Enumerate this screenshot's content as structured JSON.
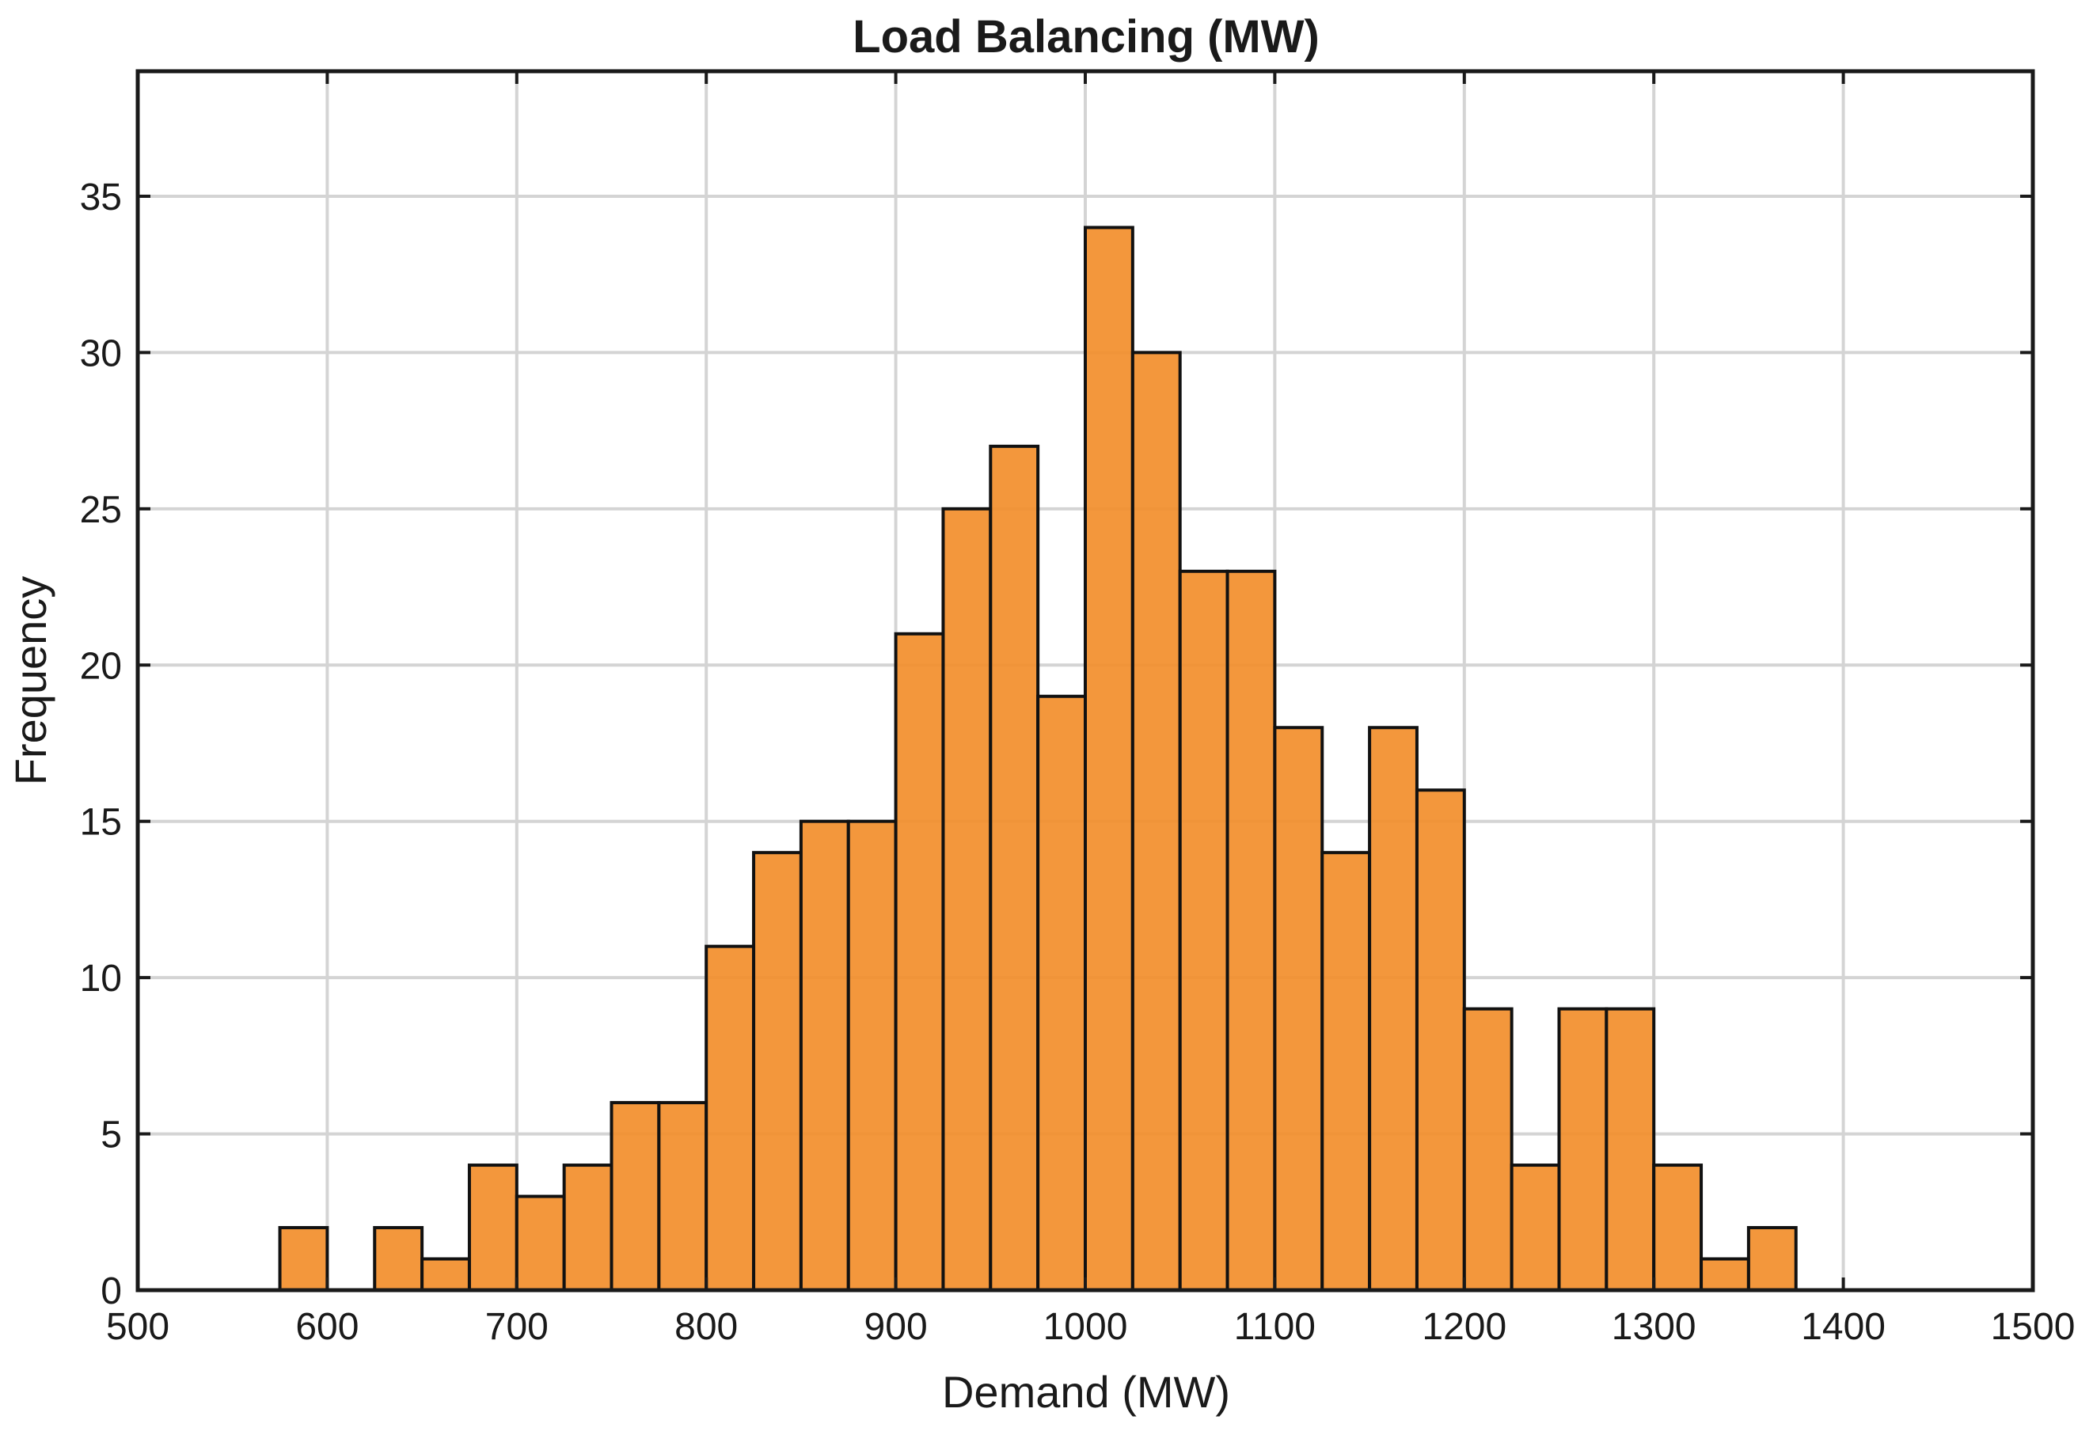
{
  "chart_data": {
    "type": "bar",
    "title": "Load Balancing (MW)",
    "xlabel": "Demand (MW)",
    "ylabel": "Frequency",
    "xlim": [
      500,
      1500
    ],
    "ylim": [
      0,
      39
    ],
    "xticks": [
      500,
      600,
      700,
      800,
      900,
      1000,
      1100,
      1200,
      1300,
      1400,
      1500
    ],
    "yticks": [
      0,
      5,
      10,
      15,
      20,
      25,
      30,
      35
    ],
    "grid": true,
    "bin_width": 25,
    "bin_start": [
      575,
      600,
      625,
      650,
      675,
      700,
      725,
      750,
      775,
      800,
      825,
      850,
      875,
      900,
      925,
      950,
      975,
      1000,
      1025,
      1050,
      1075,
      1100,
      1125,
      1150,
      1175,
      1200,
      1225,
      1250,
      1275,
      1300,
      1325,
      1350
    ],
    "values": [
      2,
      0,
      2,
      1,
      4,
      3,
      4,
      6,
      6,
      11,
      14,
      15,
      15,
      21,
      25,
      27,
      19,
      34,
      30,
      23,
      23,
      18,
      14,
      18,
      16,
      9,
      4,
      9,
      9,
      4,
      1,
      2
    ],
    "colors": {
      "bar_fill": "#f28e2b",
      "bar_edge": "#111111",
      "grid": "#d4d4d4",
      "axis": "#1a1a1a"
    }
  }
}
